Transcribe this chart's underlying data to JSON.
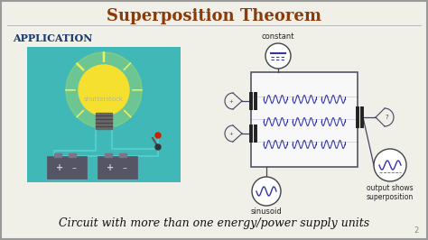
{
  "title": "Superposition Theorem",
  "title_color": "#8B3A0A",
  "subtitle": "Application",
  "subtitle_color": "#1a3a6e",
  "caption": "Circuit with more than one energy/power supply units",
  "caption_color": "#111111",
  "bg_color": "#f0efe8",
  "slide_border_color": "#999999",
  "teal_box_color": "#40b8b8",
  "label_constant": "constant",
  "label_sinusoid": "sinusoid",
  "label_output": "output shows\nsuperposition",
  "label_shutterstock": "shutterstock",
  "page_number": "2",
  "circ_color": "#3333aa",
  "wire_color": "#444466",
  "box_border": "#555566"
}
